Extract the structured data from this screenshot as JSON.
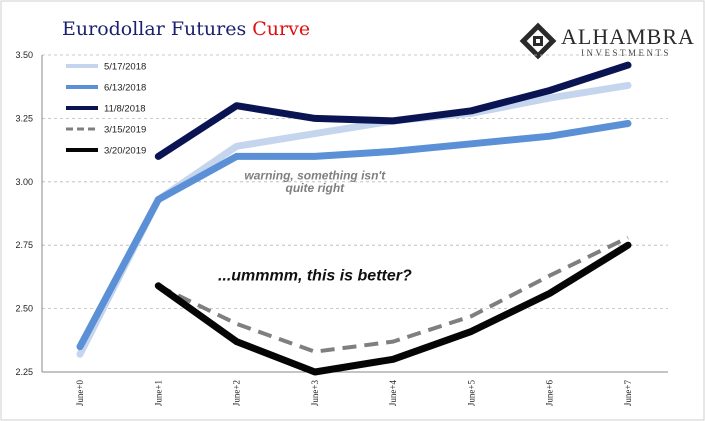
{
  "title": {
    "main": "Eurodollar Futures ",
    "accent": "Curve",
    "main_color": "#1a1f6e",
    "accent_color": "#e01010"
  },
  "logo": {
    "name": "ALHAMBRA",
    "sub": "INVESTMENTS",
    "icon": "alhambra-tile-icon"
  },
  "chart_data": {
    "type": "line",
    "categories": [
      "June+0",
      "June+1",
      "June+2",
      "June+3",
      "June+4",
      "June+5",
      "June+6",
      "June+7"
    ],
    "ylim": [
      2.25,
      3.5
    ],
    "yticks": [
      "2.25",
      "2.50",
      "2.75",
      "3.00",
      "3.25",
      "3.50"
    ],
    "grid": "horizontal-dashed",
    "legend_position": "top-left",
    "series": [
      {
        "name": "5/17/2018",
        "color": "#c5d5ee",
        "dash": false,
        "values": [
          2.32,
          2.93,
          3.14,
          3.19,
          3.24,
          3.27,
          3.33,
          3.38
        ]
      },
      {
        "name": "6/13/2018",
        "color": "#5b8fd6",
        "dash": false,
        "values": [
          2.35,
          2.93,
          3.1,
          3.1,
          3.12,
          3.15,
          3.18,
          3.23
        ]
      },
      {
        "name": "11/8/2018",
        "color": "#0b1452",
        "dash": false,
        "values": [
          null,
          3.1,
          3.3,
          3.25,
          3.24,
          3.28,
          3.36,
          3.46
        ]
      },
      {
        "name": "3/15/2019",
        "color": "#7f7f7f",
        "dash": true,
        "values": [
          null,
          2.59,
          2.44,
          2.33,
          2.37,
          2.47,
          2.63,
          2.78
        ]
      },
      {
        "name": "3/20/2019",
        "color": "#050505",
        "dash": false,
        "values": [
          null,
          2.59,
          2.37,
          2.25,
          2.3,
          2.41,
          2.56,
          2.75
        ]
      }
    ],
    "annotations": [
      {
        "text": "warning, something isn't",
        "x": "June+3",
        "y": 3.01,
        "color": "#7f7f7f",
        "size": 12
      },
      {
        "text": "quite right",
        "x": "June+3",
        "y": 2.96,
        "color": "#7f7f7f",
        "size": 12
      },
      {
        "text": "...ummmm, this is better?",
        "x": "June+3",
        "y": 2.61,
        "color": "#111111",
        "size": 16
      }
    ]
  }
}
